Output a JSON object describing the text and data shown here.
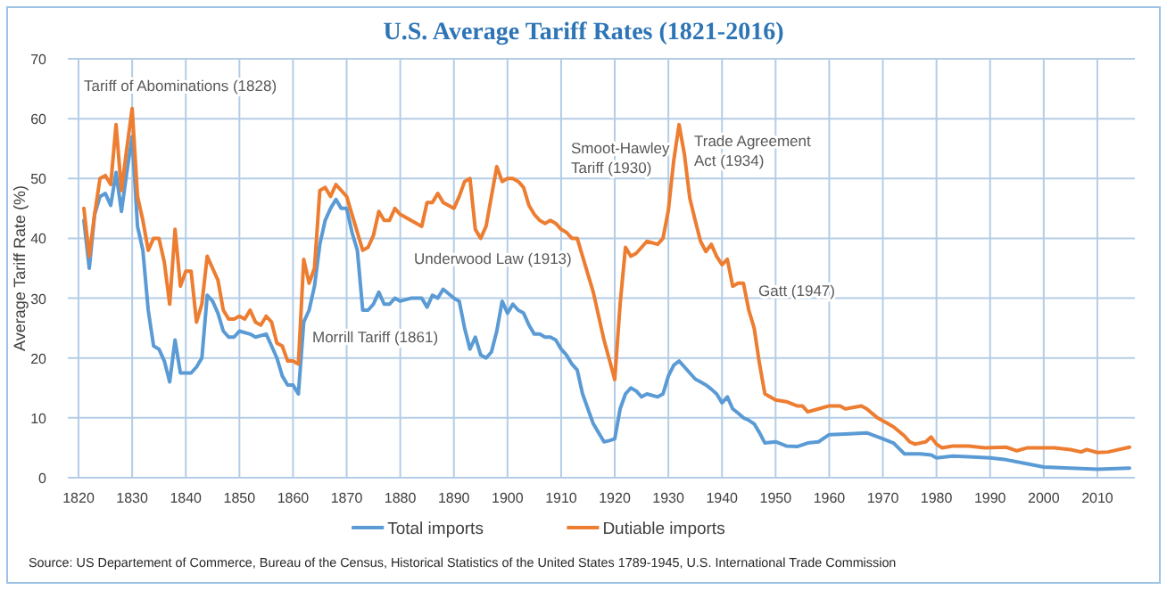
{
  "chart_data": {
    "type": "line",
    "title": "U.S. Average Tariff Rates (1821-2016)",
    "ylabel": "Average Tariff Rate (%)",
    "xlim": [
      1818,
      2017
    ],
    "xticks": [
      1820,
      1830,
      1840,
      1850,
      1860,
      1870,
      1880,
      1890,
      1900,
      1910,
      1920,
      1930,
      1940,
      1950,
      1960,
      1970,
      1980,
      1990,
      2000,
      2010
    ],
    "ylim": [
      0,
      70
    ],
    "yticks": [
      0,
      10,
      20,
      30,
      40,
      50,
      60,
      70
    ],
    "grid": true,
    "legend": "bottom",
    "series": [
      {
        "name": "Total imports",
        "color": "#5b9bd5",
        "x": [
          1821,
          1822,
          1823,
          1824,
          1825,
          1826,
          1827,
          1828,
          1829,
          1830,
          1831,
          1832,
          1833,
          1834,
          1835,
          1836,
          1837,
          1838,
          1839,
          1840,
          1841,
          1842,
          1843,
          1844,
          1845,
          1846,
          1847,
          1848,
          1849,
          1850,
          1852,
          1853,
          1855,
          1856,
          1857,
          1858,
          1859,
          1860,
          1861,
          1862,
          1863,
          1864,
          1865,
          1866,
          1867,
          1868,
          1869,
          1870,
          1871,
          1872,
          1873,
          1874,
          1875,
          1876,
          1877,
          1878,
          1879,
          1880,
          1882,
          1884,
          1885,
          1886,
          1887,
          1888,
          1890,
          1891,
          1892,
          1893,
          1894,
          1895,
          1896,
          1897,
          1898,
          1899,
          1900,
          1901,
          1902,
          1903,
          1904,
          1905,
          1906,
          1907,
          1908,
          1909,
          1910,
          1911,
          1912,
          1913,
          1914,
          1916,
          1917,
          1918,
          1919,
          1920,
          1921,
          1922,
          1923,
          1924,
          1925,
          1926,
          1928,
          1929,
          1930,
          1931,
          1932,
          1933,
          1934,
          1935,
          1936,
          1937,
          1938,
          1939,
          1940,
          1941,
          1942,
          1943,
          1944,
          1945,
          1946,
          1947,
          1948,
          1950,
          1952,
          1954,
          1956,
          1958,
          1960,
          1963,
          1967,
          1970,
          1972,
          1974,
          1977,
          1979,
          1980,
          1983,
          1986,
          1990,
          1993,
          1997,
          2000,
          2005,
          2010,
          2016
        ],
        "values": [
          43,
          35,
          44,
          47,
          47.5,
          45.5,
          51,
          44.5,
          51,
          57,
          42,
          38,
          28,
          22,
          21.5,
          19.5,
          16,
          23,
          17.5,
          17.5,
          17.5,
          18.5,
          20,
          30.5,
          29.5,
          27.5,
          24.5,
          23.5,
          23.5,
          24.5,
          24,
          23.5,
          24,
          22,
          20,
          17,
          15.5,
          15.5,
          14,
          26,
          28,
          32,
          39,
          43,
          45,
          46.5,
          45,
          45,
          41,
          38,
          28,
          28,
          29,
          31,
          29,
          29,
          30,
          29.5,
          30,
          30,
          28.5,
          30.5,
          30,
          31.5,
          30,
          29.5,
          25,
          21.5,
          23.5,
          20.5,
          20,
          21,
          24.5,
          29.5,
          27.5,
          29,
          28,
          27.5,
          25.5,
          24,
          24,
          23.5,
          23.5,
          23,
          21.5,
          20.5,
          19,
          18,
          14,
          9,
          7.5,
          6,
          6.2,
          6.5,
          11.5,
          14,
          15,
          14.5,
          13.5,
          14,
          13.5,
          14,
          17,
          18.8,
          19.5,
          18.5,
          17.5,
          16.5,
          16,
          15.5,
          14.8,
          14,
          12.5,
          13.5,
          11.5,
          10.8,
          10,
          9.6,
          9,
          7.5,
          5.8,
          6,
          5.3,
          5.2,
          5.8,
          6,
          7.2,
          7.3,
          7.5,
          6.5,
          5.8,
          4,
          4,
          3.8,
          3.3,
          3.6,
          3.5,
          3.3,
          3,
          2.3,
          1.8,
          1.6,
          1.4,
          1.6
        ]
      },
      {
        "name": "Dutiable imports",
        "color": "#ed7d31",
        "x": [
          1821,
          1822,
          1823,
          1824,
          1825,
          1826,
          1827,
          1828,
          1829,
          1830,
          1831,
          1832,
          1833,
          1834,
          1835,
          1836,
          1837,
          1838,
          1839,
          1840,
          1841,
          1842,
          1843,
          1844,
          1845,
          1846,
          1847,
          1848,
          1849,
          1850,
          1851,
          1852,
          1853,
          1854,
          1855,
          1856,
          1857,
          1858,
          1859,
          1860,
          1861,
          1862,
          1863,
          1864,
          1865,
          1866,
          1867,
          1868,
          1869,
          1870,
          1871,
          1872,
          1873,
          1874,
          1875,
          1876,
          1877,
          1878,
          1879,
          1880,
          1882,
          1884,
          1885,
          1886,
          1887,
          1888,
          1890,
          1891,
          1892,
          1893,
          1894,
          1895,
          1896,
          1897,
          1898,
          1899,
          1900,
          1901,
          1902,
          1903,
          1904,
          1905,
          1906,
          1907,
          1908,
          1909,
          1910,
          1911,
          1912,
          1913,
          1914,
          1916,
          1918,
          1920,
          1921,
          1922,
          1923,
          1924,
          1926,
          1928,
          1929,
          1930,
          1931,
          1932,
          1933,
          1934,
          1935,
          1936,
          1937,
          1938,
          1939,
          1940,
          1941,
          1942,
          1943,
          1944,
          1945,
          1946,
          1947,
          1948,
          1950,
          1952,
          1954,
          1955,
          1956,
          1958,
          1960,
          1962,
          1963,
          1966,
          1967,
          1969,
          1971,
          1972,
          1974,
          1975,
          1976,
          1978,
          1979,
          1980,
          1981,
          1983,
          1986,
          1989,
          1993,
          1995,
          1997,
          2002,
          2005,
          2007,
          2008,
          2010,
          2012,
          2016
        ],
        "values": [
          45,
          37,
          44,
          50,
          50.5,
          49,
          59,
          48,
          55,
          61.7,
          47,
          43,
          38,
          40,
          40,
          36,
          29,
          41.5,
          32,
          34.5,
          34.5,
          26,
          29,
          37,
          35,
          33,
          28,
          26.5,
          26.5,
          27,
          26.5,
          28,
          26,
          25.5,
          27,
          26,
          22.5,
          22,
          19.5,
          19.5,
          19,
          36.5,
          32.5,
          35,
          48,
          48.5,
          47,
          49,
          48,
          47,
          44,
          41,
          38,
          38.5,
          40.5,
          44.5,
          43,
          43,
          45,
          44,
          43,
          42,
          46,
          46,
          47.5,
          46,
          45,
          47,
          49.5,
          50,
          41.5,
          40,
          42,
          47,
          52,
          49.5,
          50,
          50,
          49.5,
          48.5,
          45.5,
          44,
          43,
          42.5,
          43,
          42.5,
          41.5,
          41,
          40,
          40,
          37,
          31,
          23,
          16.4,
          29,
          38.5,
          37,
          37.5,
          39.5,
          39,
          40,
          44.7,
          53,
          59,
          54,
          46.7,
          43,
          39.5,
          37.8,
          39,
          37,
          35.6,
          36.5,
          32,
          32.5,
          32.5,
          28,
          25,
          19,
          14,
          13,
          12.7,
          12,
          12,
          11,
          11.5,
          12,
          12,
          11.5,
          12,
          11.5,
          10,
          9,
          8.5,
          7,
          6,
          5.6,
          6,
          6.8,
          5.6,
          5,
          5.3,
          5.3,
          5,
          5.1,
          4.5,
          5,
          5,
          4.7,
          4.3,
          4.7,
          4.2,
          4.3,
          5.1
        ]
      }
    ],
    "annotations": [
      "Tariff of Abominations (1828)",
      "Morrill Tariff  (1861)",
      "Underwood  Law (1913)",
      "Smoot-Hawley Tariff (1930)",
      "Trade Agreement Act (1934)",
      "Gatt (1947)",
      "Source: US Departement of Commerce, Bureau of the Census, Historical Statistics of the United States 1789-1945, U.S. International Trade Commission"
    ]
  }
}
